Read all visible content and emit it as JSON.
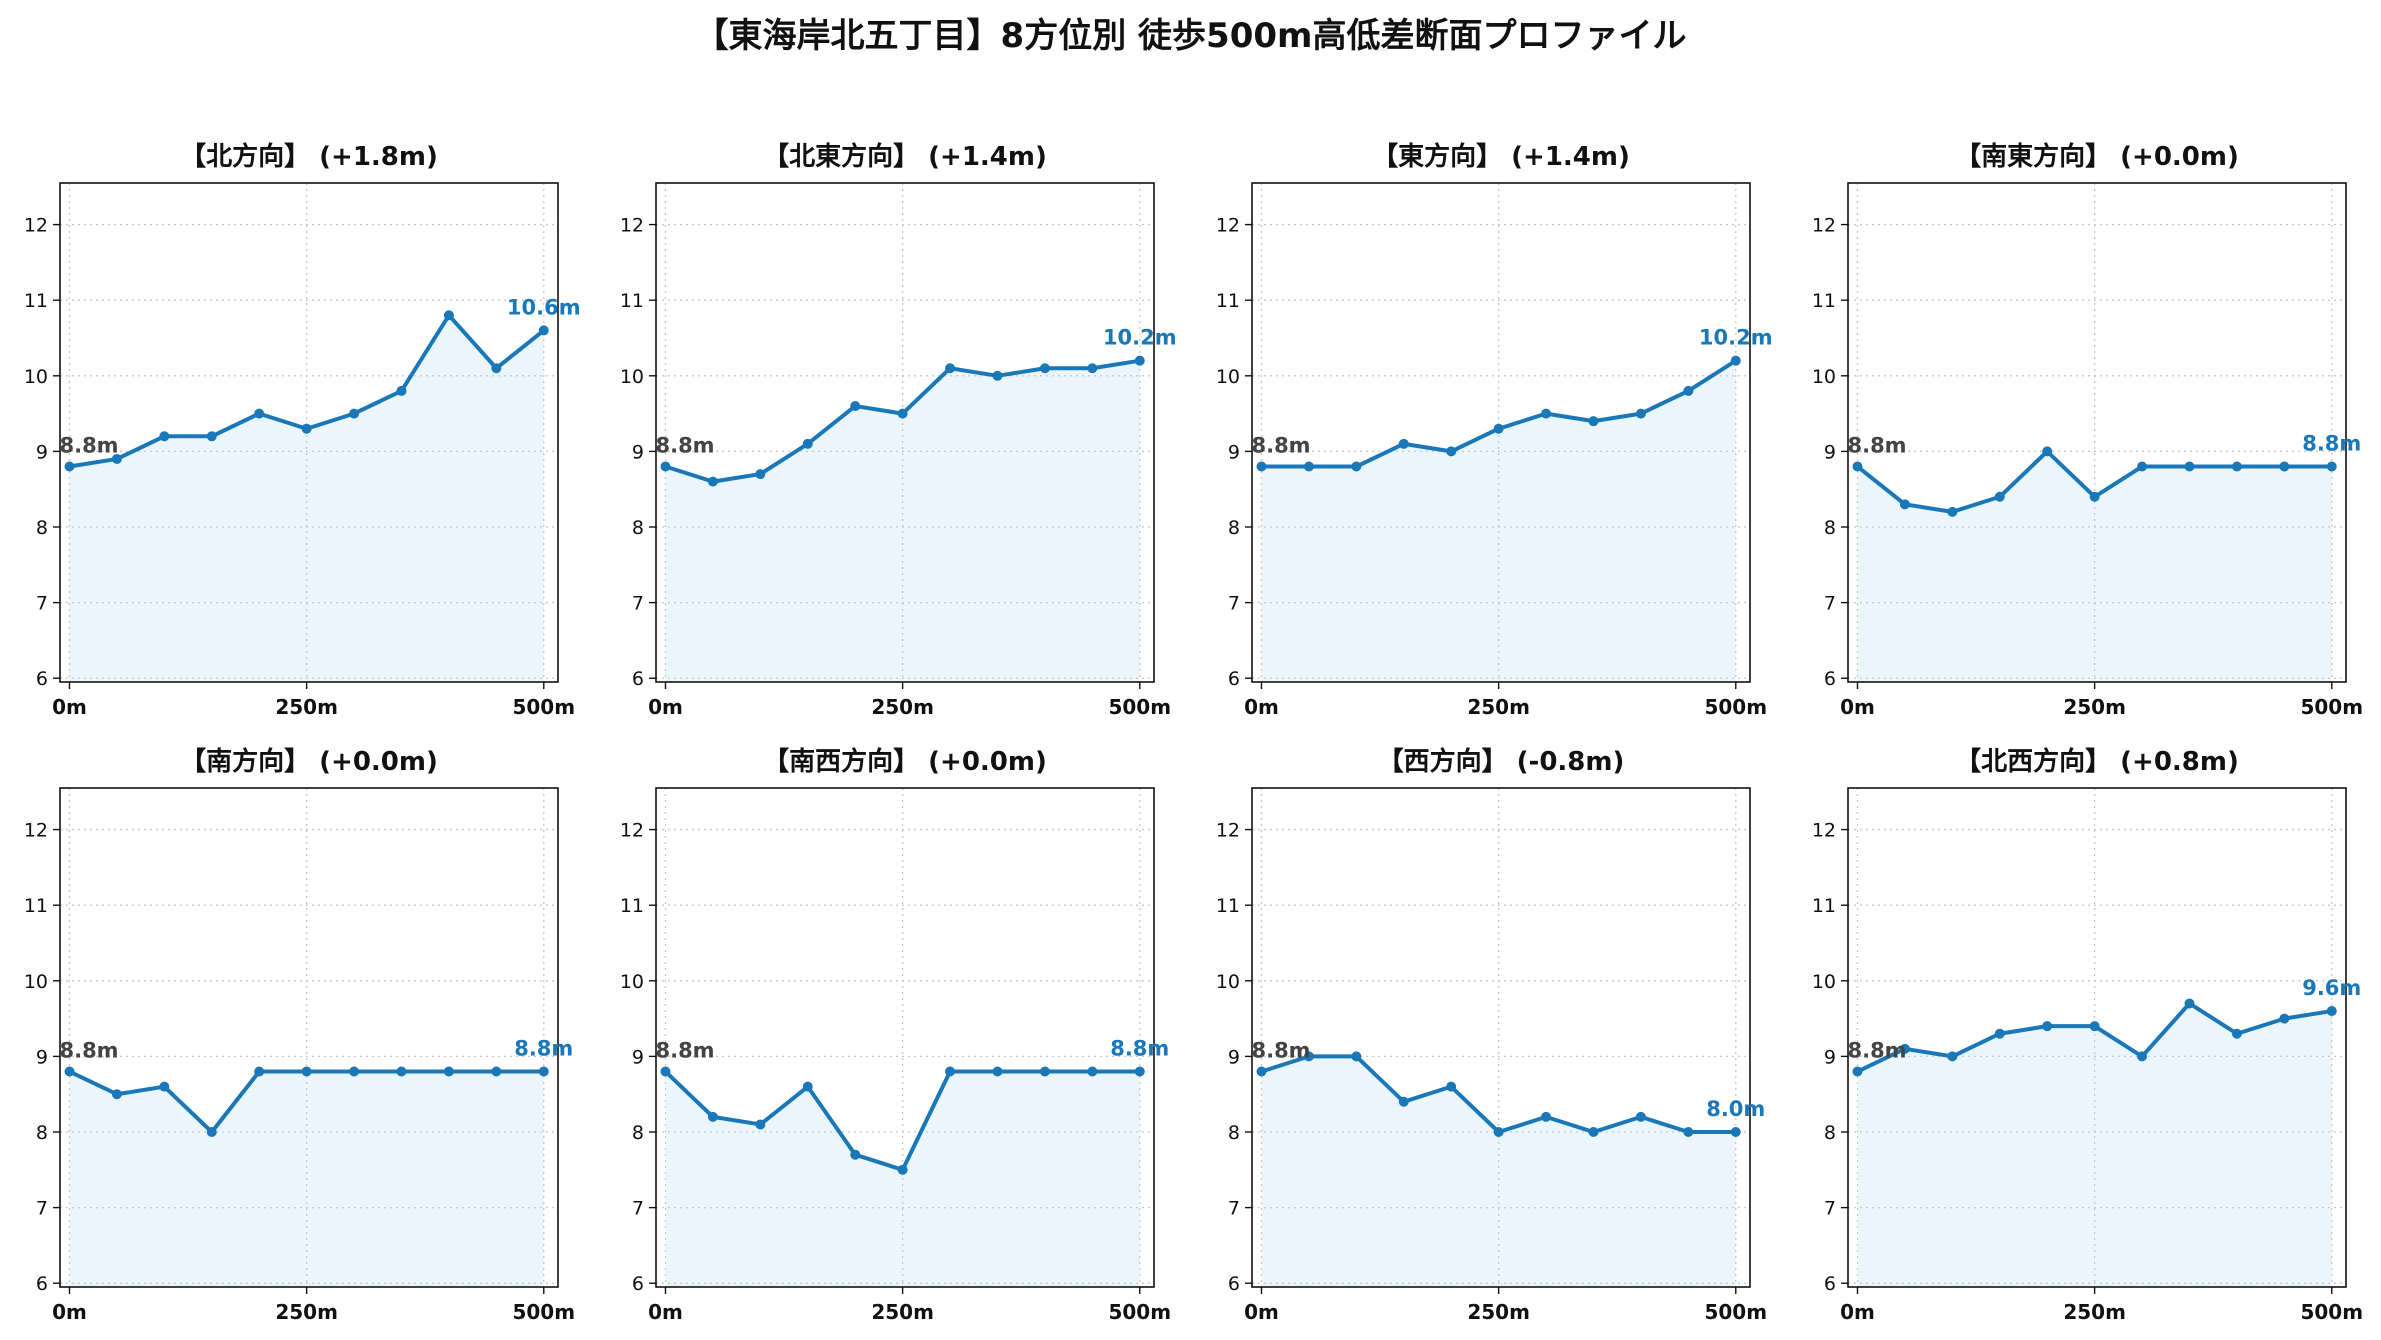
{
  "title": "【東海岸北五丁目】8方位別 徒歩500m高低差断面プロファイル",
  "chart_data": [
    {
      "type": "line",
      "title": "【北方向】 (+1.8m)",
      "x": [
        0,
        50,
        100,
        150,
        200,
        250,
        300,
        350,
        400,
        450,
        500
      ],
      "values": [
        8.8,
        8.9,
        9.2,
        9.2,
        9.5,
        9.3,
        9.5,
        9.8,
        10.8,
        10.1,
        10.6
      ],
      "start_label": "8.8m",
      "end_label": "10.6m",
      "xticks": [
        "0m",
        "250m",
        "500m"
      ],
      "yticks": [
        "6",
        "7",
        "8",
        "9",
        "10",
        "11",
        "12"
      ],
      "ylim": [
        5.95,
        12.55
      ],
      "xlim": [
        -10,
        515
      ],
      "grid": true
    },
    {
      "type": "line",
      "title": "【北東方向】 (+1.4m)",
      "x": [
        0,
        50,
        100,
        150,
        200,
        250,
        300,
        350,
        400,
        450,
        500
      ],
      "values": [
        8.8,
        8.6,
        8.7,
        9.1,
        9.6,
        9.5,
        10.1,
        10.0,
        10.1,
        10.1,
        10.2
      ],
      "start_label": "8.8m",
      "end_label": "10.2m",
      "xticks": [
        "0m",
        "250m",
        "500m"
      ],
      "yticks": [
        "6",
        "7",
        "8",
        "9",
        "10",
        "11",
        "12"
      ],
      "ylim": [
        5.95,
        12.55
      ],
      "xlim": [
        -10,
        515
      ],
      "grid": true
    },
    {
      "type": "line",
      "title": "【東方向】 (+1.4m)",
      "x": [
        0,
        50,
        100,
        150,
        200,
        250,
        300,
        350,
        400,
        450,
        500
      ],
      "values": [
        8.8,
        8.8,
        8.8,
        9.1,
        9.0,
        9.3,
        9.5,
        9.4,
        9.5,
        9.8,
        10.2
      ],
      "start_label": "8.8m",
      "end_label": "10.2m",
      "xticks": [
        "0m",
        "250m",
        "500m"
      ],
      "yticks": [
        "6",
        "7",
        "8",
        "9",
        "10",
        "11",
        "12"
      ],
      "ylim": [
        5.95,
        12.55
      ],
      "xlim": [
        -10,
        515
      ],
      "grid": true
    },
    {
      "type": "line",
      "title": "【南東方向】 (+0.0m)",
      "x": [
        0,
        50,
        100,
        150,
        200,
        250,
        300,
        350,
        400,
        450,
        500
      ],
      "values": [
        8.8,
        8.3,
        8.2,
        8.4,
        9.0,
        8.4,
        8.8,
        8.8,
        8.8,
        8.8,
        8.8
      ],
      "start_label": "8.8m",
      "end_label": "8.8m",
      "xticks": [
        "0m",
        "250m",
        "500m"
      ],
      "yticks": [
        "6",
        "7",
        "8",
        "9",
        "10",
        "11",
        "12"
      ],
      "ylim": [
        5.95,
        12.55
      ],
      "xlim": [
        -10,
        515
      ],
      "grid": true
    },
    {
      "type": "line",
      "title": "【南方向】 (+0.0m)",
      "x": [
        0,
        50,
        100,
        150,
        200,
        250,
        300,
        350,
        400,
        450,
        500
      ],
      "values": [
        8.8,
        8.5,
        8.6,
        8.0,
        8.8,
        8.8,
        8.8,
        8.8,
        8.8,
        8.8,
        8.8
      ],
      "start_label": "8.8m",
      "end_label": "8.8m",
      "xticks": [
        "0m",
        "250m",
        "500m"
      ],
      "yticks": [
        "6",
        "7",
        "8",
        "9",
        "10",
        "11",
        "12"
      ],
      "ylim": [
        5.95,
        12.55
      ],
      "xlim": [
        -10,
        515
      ],
      "grid": true
    },
    {
      "type": "line",
      "title": "【南西方向】 (+0.0m)",
      "x": [
        0,
        50,
        100,
        150,
        200,
        250,
        300,
        350,
        400,
        450,
        500
      ],
      "values": [
        8.8,
        8.2,
        8.1,
        8.6,
        7.7,
        7.5,
        8.8,
        8.8,
        8.8,
        8.8,
        8.8
      ],
      "start_label": "8.8m",
      "end_label": "8.8m",
      "xticks": [
        "0m",
        "250m",
        "500m"
      ],
      "yticks": [
        "6",
        "7",
        "8",
        "9",
        "10",
        "11",
        "12"
      ],
      "ylim": [
        5.95,
        12.55
      ],
      "xlim": [
        -10,
        515
      ],
      "grid": true
    },
    {
      "type": "line",
      "title": "【西方向】 (-0.8m)",
      "x": [
        0,
        50,
        100,
        150,
        200,
        250,
        300,
        350,
        400,
        450,
        500
      ],
      "values": [
        8.8,
        9.0,
        9.0,
        8.4,
        8.6,
        8.0,
        8.2,
        8.0,
        8.2,
        8.0,
        8.0
      ],
      "start_label": "8.8m",
      "end_label": "8.0m",
      "xticks": [
        "0m",
        "250m",
        "500m"
      ],
      "yticks": [
        "6",
        "7",
        "8",
        "9",
        "10",
        "11",
        "12"
      ],
      "ylim": [
        5.95,
        12.55
      ],
      "xlim": [
        -10,
        515
      ],
      "grid": true
    },
    {
      "type": "line",
      "title": "【北西方向】 (+0.8m)",
      "x": [
        0,
        50,
        100,
        150,
        200,
        250,
        300,
        350,
        400,
        450,
        500
      ],
      "values": [
        8.8,
        9.1,
        9.0,
        9.3,
        9.4,
        9.4,
        9.0,
        9.7,
        9.3,
        9.5,
        9.6
      ],
      "start_label": "8.8m",
      "end_label": "9.6m",
      "xticks": [
        "0m",
        "250m",
        "500m"
      ],
      "yticks": [
        "6",
        "7",
        "8",
        "9",
        "10",
        "11",
        "12"
      ],
      "ylim": [
        5.95,
        12.55
      ],
      "xlim": [
        -10,
        515
      ],
      "grid": true
    }
  ],
  "colors": {
    "line": "#1a78b8",
    "fill": "#eaf6fb",
    "start_label": "#444444"
  }
}
